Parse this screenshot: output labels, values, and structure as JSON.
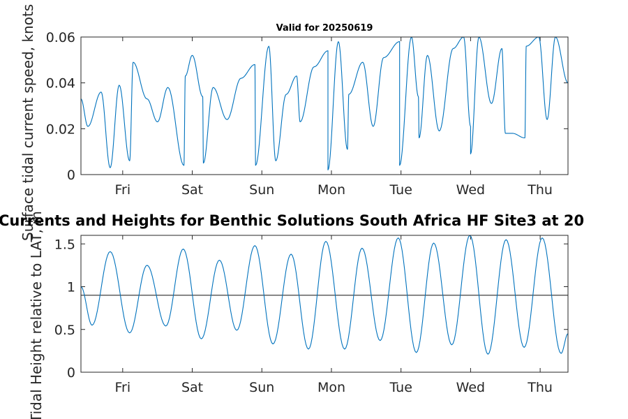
{
  "chart_data": [
    {
      "type": "line",
      "title": "Valid for 20250619",
      "ylabel": "Surface tidal current speed, knots",
      "xlim": [
        0,
        7
      ],
      "ylim": [
        0,
        0.06
      ],
      "yticks": [
        0,
        0.02,
        0.04,
        0.06
      ],
      "ytick_labels": [
        "0",
        "0.02",
        "0.04",
        "0.06"
      ],
      "xticks": [
        0.6,
        1.6,
        2.6,
        3.6,
        4.6,
        5.6,
        6.6
      ],
      "xtick_labels": [
        "Fri",
        "Sat",
        "Sun",
        "Mon",
        "Tue",
        "Wed",
        "Thu"
      ],
      "series": [
        {
          "color": "#0072BD",
          "x": [
            0.0,
            0.1,
            0.29,
            0.55,
            0.75,
            0.95,
            1.1,
            1.25,
            1.5,
            1.6,
            1.75,
            1.9,
            2.1,
            2.3,
            2.5,
            2.7,
            2.95,
            3.1,
            3.15,
            3.35,
            3.55,
            3.7,
            3.85,
            4.05,
            4.2,
            4.35,
            4.58,
            4.75,
            4.85,
            4.98,
            5.15,
            5.35,
            5.5,
            5.6,
            5.72,
            5.9,
            6.05,
            6.2,
            6.4,
            6.58,
            6.7,
            6.82,
            7.0
          ],
          "y": [
            0.033,
            0.021,
            0.036,
            0.039,
            0.049,
            0.033,
            0.023,
            0.038,
            0.043,
            0.052,
            0.034,
            0.038,
            0.024,
            0.042,
            0.048,
            0.056,
            0.035,
            0.043,
            0.023,
            0.047,
            0.054,
            0.058,
            0.035,
            0.049,
            0.021,
            0.051,
            0.058,
            0.06,
            0.034,
            0.052,
            0.019,
            0.055,
            0.06,
            0.021,
            0.06,
            0.031,
            0.055,
            0.018,
            0.056,
            0.06,
            0.024,
            0.06,
            0.04
          ],
          "dips": [
            {
              "x": 0.42,
              "y": 0.003
            },
            {
              "x": 0.7,
              "y": 0.006
            },
            {
              "x": 1.48,
              "y": 0.004
            },
            {
              "x": 1.76,
              "y": 0.005
            },
            {
              "x": 2.51,
              "y": 0.004
            },
            {
              "x": 2.8,
              "y": 0.006
            },
            {
              "x": 3.55,
              "y": 0.002
            },
            {
              "x": 3.83,
              "y": 0.011
            },
            {
              "x": 4.58,
              "y": 0.004
            },
            {
              "x": 4.86,
              "y": 0.016
            },
            {
              "x": 5.6,
              "y": 0.009
            },
            {
              "x": 6.1,
              "y": 0.018
            },
            {
              "x": 6.38,
              "y": 0.016
            }
          ]
        }
      ]
    },
    {
      "type": "line",
      "title": "Currents and Heights for Benthic Solutions South Africa HF Site3 at 20",
      "ylabel": "Tidal Height relative to LAT, m",
      "xlim": [
        0,
        7
      ],
      "ylim": [
        0,
        1.6
      ],
      "yticks": [
        0,
        0.5,
        1,
        1.5
      ],
      "ytick_labels": [
        "0",
        "0.5",
        "1",
        "1.5"
      ],
      "xticks": [
        0.6,
        1.6,
        2.6,
        3.6,
        4.6,
        5.6,
        6.6
      ],
      "xtick_labels": [
        "Fri",
        "Sat",
        "Sun",
        "Mon",
        "Tue",
        "Wed",
        "Thu"
      ],
      "reference_line": {
        "y": 0.9,
        "color": "#404040"
      },
      "series": [
        {
          "color": "#0072BD",
          "x": [
            0.0,
            0.16,
            0.42,
            0.7,
            0.95,
            1.22,
            1.47,
            1.73,
            1.99,
            2.24,
            2.5,
            2.76,
            3.02,
            3.27,
            3.52,
            3.79,
            4.04,
            4.3,
            4.56,
            4.82,
            5.07,
            5.33,
            5.59,
            5.85,
            6.11,
            6.37,
            6.63,
            6.9,
            7.0
          ],
          "y": [
            1.0,
            0.55,
            1.41,
            0.46,
            1.25,
            0.54,
            1.44,
            0.39,
            1.31,
            0.49,
            1.48,
            0.33,
            1.38,
            0.27,
            1.53,
            0.27,
            1.45,
            0.37,
            1.57,
            0.23,
            1.51,
            0.32,
            1.6,
            0.21,
            1.55,
            0.29,
            1.57,
            0.22,
            0.45
          ]
        }
      ]
    }
  ]
}
